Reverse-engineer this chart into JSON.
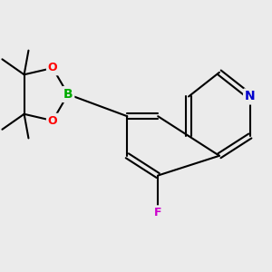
{
  "bg_color": "#ebebeb",
  "bond_color": "#000000",
  "bond_width": 1.5,
  "atom_colors": {
    "B": "#00aa00",
    "O": "#ff0000",
    "N": "#0000ff",
    "F": "#ff00ff",
    "C": "#000000"
  },
  "font_size_atom": 10,
  "font_size_methyl": 8
}
